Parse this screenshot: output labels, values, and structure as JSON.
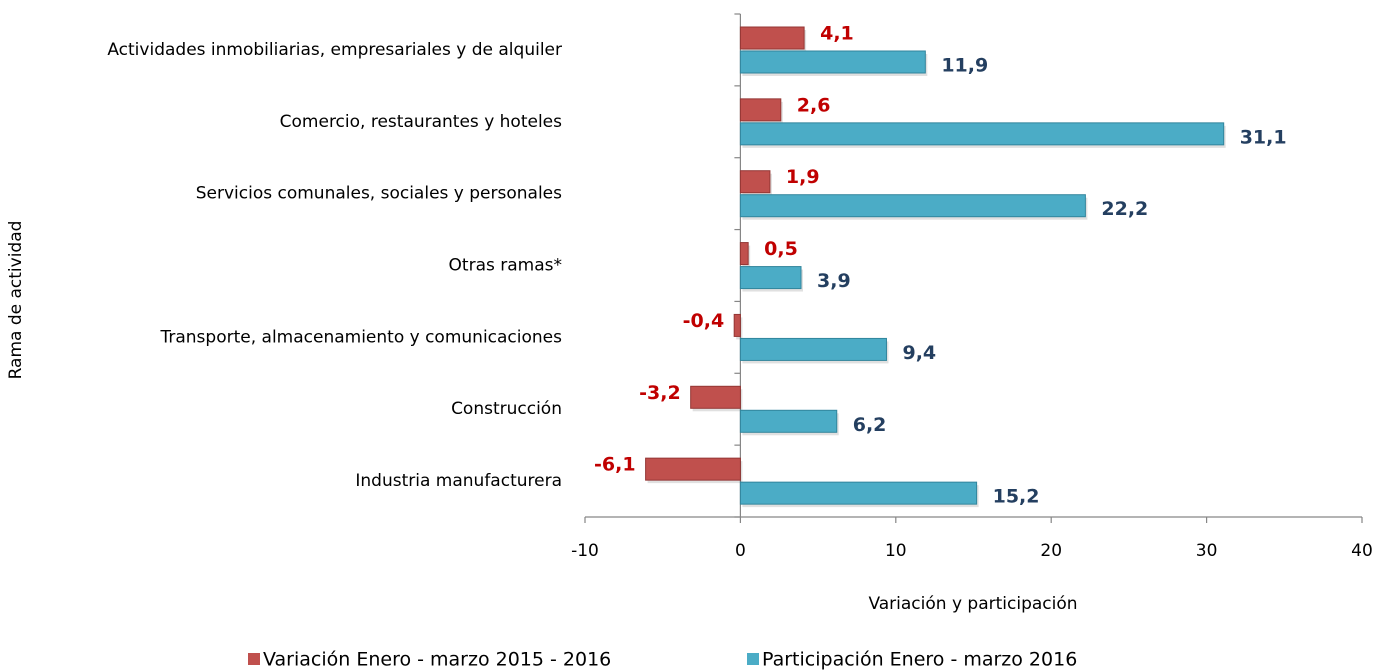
{
  "chart_data": {
    "type": "bar",
    "orientation": "horizontal",
    "y_axis_label": "Rama de actividad",
    "x_axis_label": "Variación y participación",
    "categories": [
      "Actividades inmobiliarias, empresariales y de alquiler",
      "Comercio, restaurantes y hoteles",
      "Servicios comunales, sociales y personales",
      "Otras ramas*",
      "Transporte, almacenamiento y comunicaciones",
      "Construcción",
      "Industria manufacturera"
    ],
    "series": [
      {
        "name": "Variación Enero - marzo 2015 - 2016",
        "color": "#c0504d",
        "label_color": "#c00000",
        "values": [
          4.1,
          2.6,
          1.9,
          0.5,
          -0.4,
          -3.2,
          -6.1
        ],
        "value_labels": [
          "4,1",
          "2,6",
          "1,9",
          "0,5",
          "-0,4",
          "-3,2",
          "-6,1"
        ]
      },
      {
        "name": "Participación Enero - marzo 2016",
        "color": "#4bacc6",
        "label_color": "#243f60",
        "values": [
          11.9,
          31.1,
          22.2,
          3.9,
          9.4,
          6.2,
          15.2
        ],
        "value_labels": [
          "11,9",
          "31,1",
          "22,2",
          "3,9",
          "9,4",
          "6,2",
          "15,2"
        ]
      }
    ],
    "xlim": [
      -10,
      40
    ],
    "xticks": [
      -10,
      0,
      10,
      20,
      30,
      40
    ],
    "grid": false,
    "legend": "bottom"
  }
}
